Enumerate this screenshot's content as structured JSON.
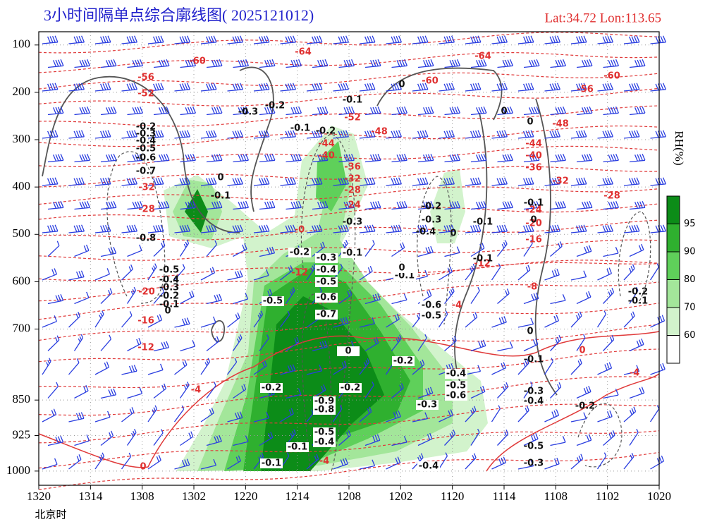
{
  "chart_data": {
    "type": "cross-section",
    "title": "3小时间隔单点综合廓线图( 2025121012)",
    "location": "Lat:34.72  Lon:113.65",
    "x_axis_label": "北京时",
    "categories": [
      "1320",
      "1314",
      "1308",
      "1302",
      "1220",
      "1214",
      "1208",
      "1202",
      "1120",
      "1114",
      "1108",
      "1102",
      "1020"
    ],
    "ylim": [
      1030,
      72
    ],
    "yticks": [
      100,
      200,
      300,
      400,
      500,
      600,
      700,
      850,
      925,
      1000
    ],
    "colorbar": {
      "label": "RH(%)",
      "ticks": [
        60,
        70,
        80,
        90,
        95
      ],
      "colors": [
        "#ffffff",
        "#d2f3cc",
        "#a3e69a",
        "#5fd05a",
        "#2fb02f",
        "#0c8c18"
      ]
    },
    "temperature_labels": [
      "-64",
      "-60",
      "-56",
      "-52",
      "-48",
      "-44",
      "-40",
      "-36",
      "-32",
      "-28",
      "-24",
      "-20",
      "-16",
      "-12",
      "-12",
      "-8",
      "-4",
      "-4",
      "-4",
      "0",
      "0",
      "-4",
      "-64",
      "-60",
      "-60",
      "-56",
      "-52",
      "-48",
      "-44",
      "-40",
      "-36",
      "-32",
      "-28",
      "-24",
      "-20",
      "-16",
      "-12",
      "-32",
      "-28",
      "-0"
    ],
    "omega_labels": [
      "-0.3",
      "-0.2",
      "-0.1",
      "0",
      "0",
      "0",
      "-0.1",
      "-0.2",
      "-0.2",
      "-0.3",
      "-0.4",
      "-0.5",
      "-0.6",
      "-0.7",
      "-0.8",
      "-0.1",
      "0",
      "-0.5",
      "-0.4",
      "-0.3",
      "-0.2",
      "-0.1",
      "0",
      "-0.1",
      "-0.2",
      "-0.3",
      "-0.4",
      "-0.5",
      "-0.6",
      "-0.7",
      "-0.3",
      "0",
      "-0.5",
      "-0.2",
      "-0.2",
      "-0.2",
      "-0.9",
      "-0.8",
      "-0.5",
      "-0.4",
      "-0.1",
      "-0.1",
      "-0.4",
      "-0.3",
      "-0.6",
      "-0.5",
      "-0.4",
      "-0.2",
      "-0.3",
      "-0.4",
      "0",
      "-0.1",
      "-0.1",
      "-0.1",
      "-0.6",
      "-0.5",
      "-0.1",
      "-0.3",
      "-0.4",
      "-0.2",
      "-0.5",
      "-0.3",
      "-0.1",
      "0",
      "0",
      "-0.2",
      "-0.1",
      "0"
    ]
  }
}
